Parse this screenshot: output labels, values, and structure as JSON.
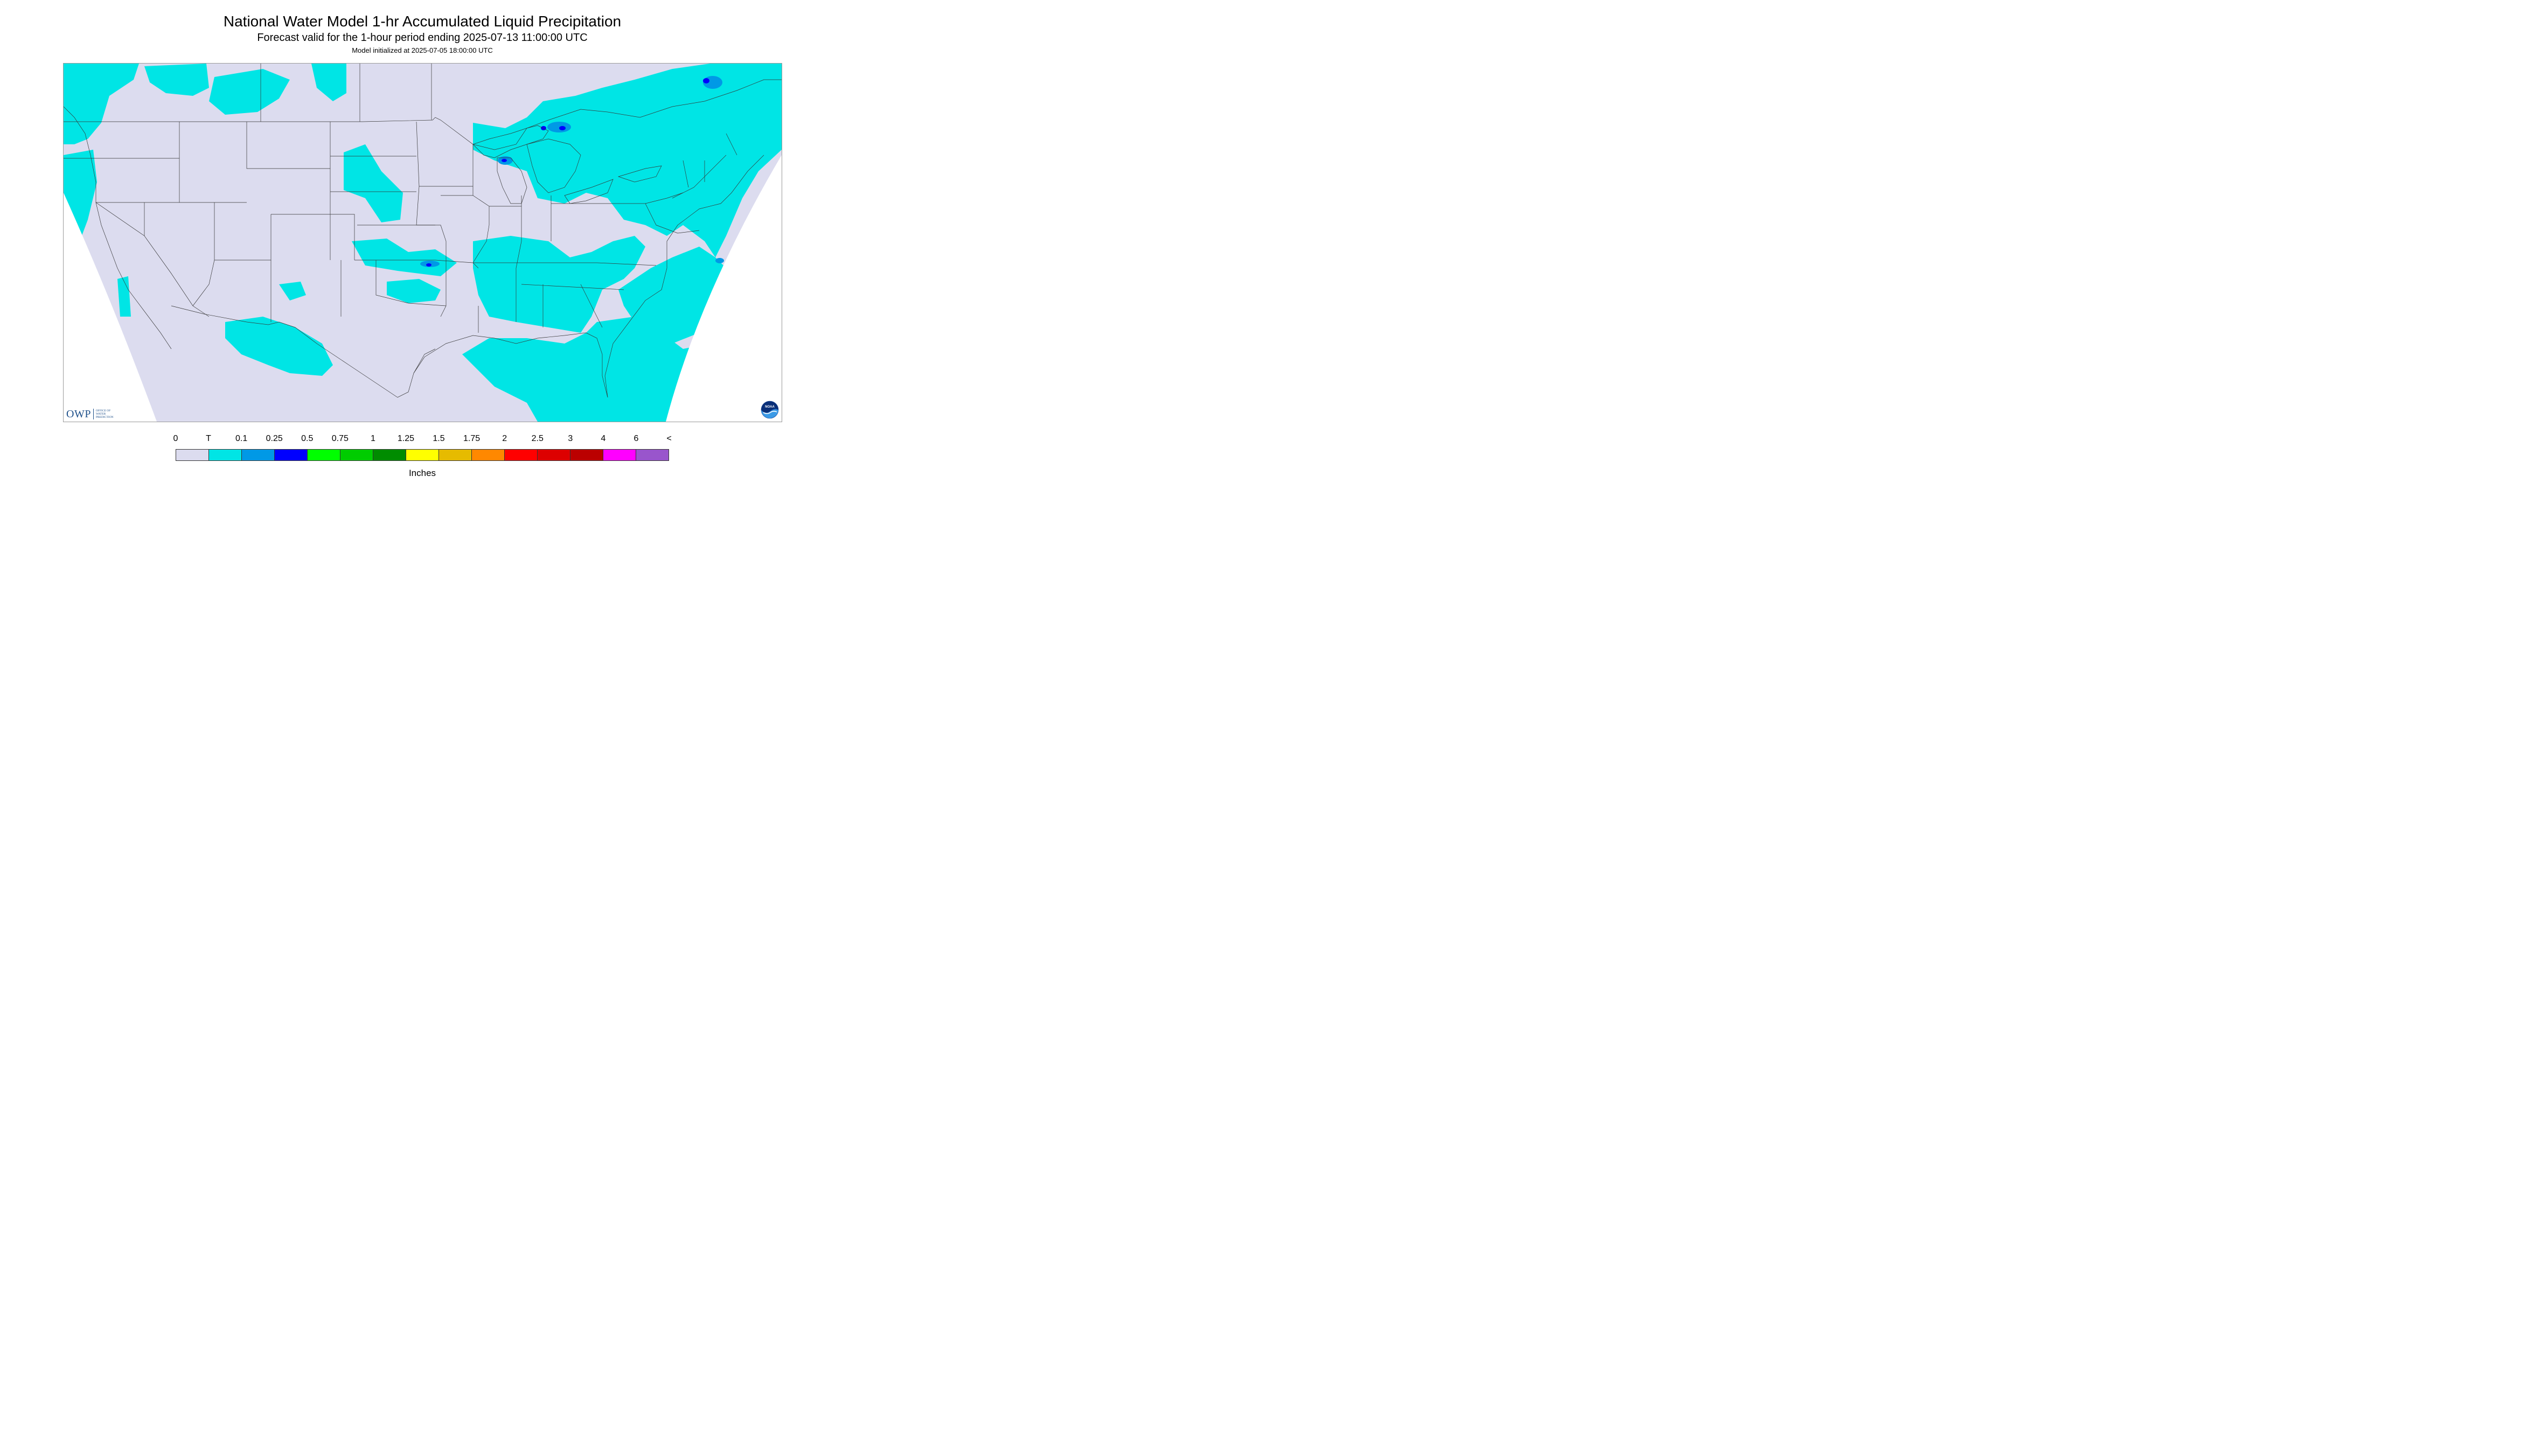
{
  "header": {
    "title": "National Water Model 1-hr Accumulated Liquid Precipitation",
    "subtitle": "Forecast valid for the 1-hour period ending 2025-07-13 11:00:00 UTC",
    "init": "Model initialized at 2025-07-05 18:00:00 UTC"
  },
  "map": {
    "region": "CONUS",
    "background_color": "#dcdcef",
    "outside_color": "#ffffff",
    "boundary_color": "#333333"
  },
  "legend": {
    "labels": [
      "0",
      "T",
      "0.1",
      "0.25",
      "0.5",
      "0.75",
      "1",
      "1.25",
      "1.5",
      "1.75",
      "2",
      "2.5",
      "3",
      "4",
      "6",
      "<"
    ],
    "colors": [
      "#dcdcef",
      "#00e5e5",
      "#0099e6",
      "#0000ff",
      "#00ff00",
      "#00cc00",
      "#008c00",
      "#ffff00",
      "#e6bb00",
      "#ff8800",
      "#ff0000",
      "#dd0000",
      "#bb0000",
      "#ff00ff",
      "#9955cc"
    ],
    "units": "Inches"
  },
  "logos": {
    "owp": {
      "text": "OWP",
      "sub": "OFFICE OF WATER PREDICTION"
    },
    "noaa": {
      "text": "NOAA"
    }
  }
}
